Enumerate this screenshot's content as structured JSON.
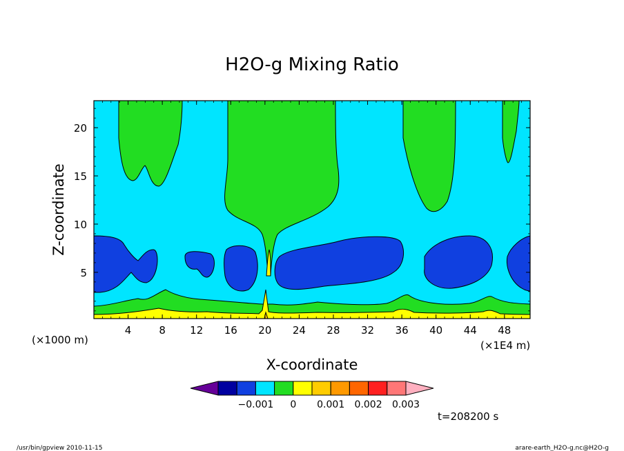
{
  "chart_data": {
    "type": "contour",
    "title": "H2O-g Mixing Ratio",
    "xlabel": "X-coordinate",
    "ylabel": "Z-coordinate",
    "x_unit_label": "(×1E4 m)",
    "y_unit_label": "(×1000 m)",
    "xlim": [
      0,
      51
    ],
    "ylim": [
      0.2,
      22.8
    ],
    "x_ticks": [
      4,
      8,
      12,
      16,
      20,
      24,
      28,
      32,
      36,
      40,
      44,
      48
    ],
    "y_ticks": [
      5,
      10,
      15,
      20
    ],
    "colorbar": {
      "levels": [
        -0.0025,
        -0.002,
        -0.0015,
        -0.001,
        -0.0005,
        0,
        0.0005,
        0.001,
        0.0015,
        0.002,
        0.0025,
        0.003
      ],
      "labeled_ticks": [
        {
          "value": -0.001,
          "label": "−0.001"
        },
        {
          "value": 0,
          "label": "0"
        },
        {
          "value": 0.001,
          "label": "0.001"
        },
        {
          "value": 0.002,
          "label": "0.002"
        },
        {
          "value": 0.003,
          "label": "0.003"
        }
      ],
      "colors": [
        "#660099",
        "#0000a0",
        "#1040e0",
        "#00e5ff",
        "#22dd22",
        "#ffff00",
        "#ffcc00",
        "#ff9900",
        "#ff6600",
        "#ff2020",
        "#ff7777",
        "#ffb0c0"
      ]
    },
    "regions": {
      "background_fill": "#00e5ff",
      "negative_fill": "#1040e0",
      "positive_fill": "#22dd22",
      "high_fill": "#ffff00",
      "peak_fill": "#ffcc00"
    },
    "time_label": "t=208200 s"
  },
  "footer": {
    "left": "/usr/bin/gpview   2010-11-15",
    "right": "arare-earth_H2O-g.nc@H2O-g"
  }
}
